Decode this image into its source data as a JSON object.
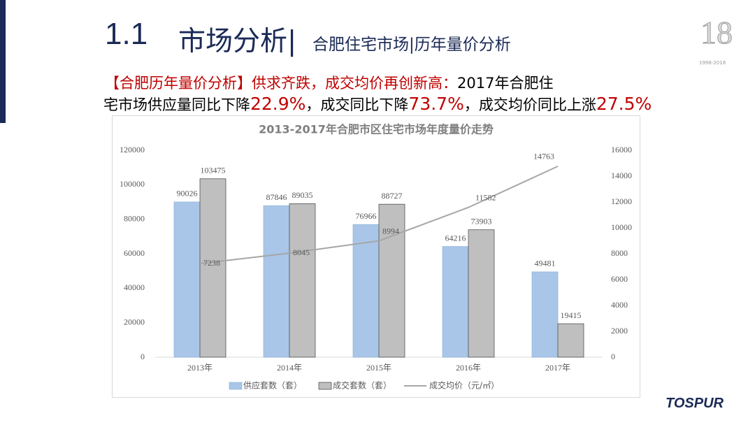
{
  "header": {
    "number": "1.1",
    "title": "市场分析|",
    "subtitle": "合肥住宅市场|历年量价分析"
  },
  "headline": [
    "【合肥历年量价分析】供求齐跌，成交均价再创新高：",
    "2017年合肥住",
    "宅市场供应量同比下降",
    "22.9%",
    "，成交同比下降",
    "73.7%",
    "，成交均价同比上涨",
    "27.5%"
  ],
  "badge": {
    "number": "18",
    "years": "1998-2018"
  },
  "logo": "TOSPUR",
  "chart_data": {
    "type": "bar-line",
    "title": "2013-2017年合肥市区住宅市场年度量价走势",
    "categories": [
      "2013年",
      "2014年",
      "2015年",
      "2016年",
      "2017年"
    ],
    "series": [
      {
        "name": "供应套数（套）",
        "type": "bar",
        "color": "#a9c6e8",
        "values": [
          90026,
          87846,
          76966,
          64216,
          49481
        ]
      },
      {
        "name": "成交套数（套）",
        "type": "bar",
        "color": "#bfbfbf",
        "values": [
          103475,
          89035,
          88727,
          73903,
          19415
        ]
      },
      {
        "name": "成交均价（元/㎡）",
        "type": "line",
        "axis": "y2",
        "color": "#a6a6a6",
        "values": [
          7238,
          8045,
          8994,
          11582,
          14763
        ]
      }
    ],
    "ylim": [
      0,
      120000
    ],
    "yticks": [
      0,
      20000,
      40000,
      60000,
      80000,
      100000,
      120000
    ],
    "y2lim": [
      0,
      16000
    ],
    "y2ticks": [
      0,
      2000,
      4000,
      6000,
      8000,
      10000,
      12000,
      14000,
      16000
    ],
    "legend": "bottom"
  }
}
